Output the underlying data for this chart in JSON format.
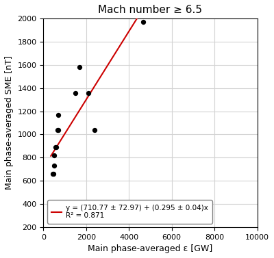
{
  "title": "Mach number ≥ 6.5",
  "xlabel": "Main phase-averaged ε [GW]",
  "ylabel": "Main phase-averaged SME [nT]",
  "scatter_x": [
    430,
    460,
    500,
    510,
    560,
    600,
    650,
    700,
    700,
    1500,
    1700,
    2100,
    2400,
    4650
  ],
  "scatter_y": [
    660,
    660,
    730,
    820,
    890,
    890,
    1040,
    1040,
    1170,
    1360,
    1580,
    1360,
    1040,
    1970
  ],
  "line_x_start": 350,
  "line_x_end": 4400,
  "fit_intercept": 710.77,
  "fit_slope": 0.295,
  "legend_text_line1": "y = (710.77 ± 72.97) + (0.295 ± 0.04)x",
  "legend_text_line2": "R² = 0.871",
  "line_color": "#cc0000",
  "scatter_color": "black",
  "scatter_size": 18,
  "xlim": [
    0,
    10000
  ],
  "ylim": [
    200,
    2000
  ],
  "xticks": [
    0,
    2000,
    4000,
    6000,
    8000,
    10000
  ],
  "yticks": [
    200,
    400,
    600,
    800,
    1000,
    1200,
    1400,
    1600,
    1800,
    2000
  ],
  "figsize": [
    4.0,
    3.77
  ],
  "dpi": 100,
  "title_fontsize": 11,
  "label_fontsize": 9,
  "tick_fontsize": 8,
  "legend_fontsize": 7.5
}
